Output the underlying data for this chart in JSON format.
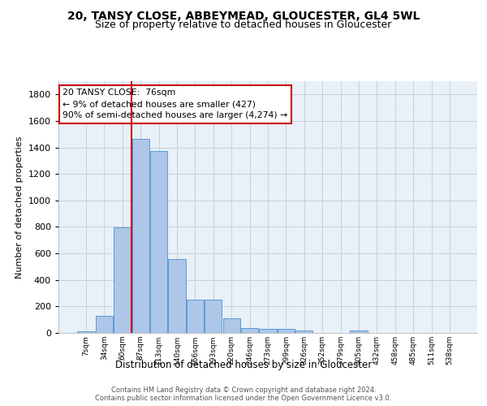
{
  "title1": "20, TANSY CLOSE, ABBEYMEAD, GLOUCESTER, GL4 5WL",
  "title2": "Size of property relative to detached houses in Gloucester",
  "xlabel": "Distribution of detached houses by size in Gloucester",
  "ylabel": "Number of detached properties",
  "footer1": "Contains HM Land Registry data © Crown copyright and database right 2024.",
  "footer2": "Contains public sector information licensed under the Open Government Licence v3.0.",
  "categories": [
    "7sqm",
    "34sqm",
    "60sqm",
    "87sqm",
    "113sqm",
    "140sqm",
    "166sqm",
    "193sqm",
    "220sqm",
    "246sqm",
    "273sqm",
    "299sqm",
    "326sqm",
    "352sqm",
    "379sqm",
    "405sqm",
    "432sqm",
    "458sqm",
    "485sqm",
    "511sqm",
    "538sqm"
  ],
  "values": [
    15,
    130,
    795,
    1465,
    1370,
    560,
    250,
    250,
    110,
    35,
    30,
    30,
    20,
    0,
    0,
    20,
    0,
    0,
    0,
    0,
    0
  ],
  "bar_color": "#aec6e8",
  "bar_edge_color": "#5b9bd5",
  "property_label": "20 TANSY CLOSE:  76sqm",
  "annotation_line1": "← 9% of detached houses are smaller (427)",
  "annotation_line2": "90% of semi-detached houses are larger (4,274) →",
  "vline_x_index": 2.5,
  "ylim": [
    0,
    1900
  ],
  "yticks": [
    0,
    200,
    400,
    600,
    800,
    1000,
    1200,
    1400,
    1600,
    1800
  ],
  "bg_color": "#e8f0f8",
  "grid_color": "#c8d0dc",
  "annotation_box_color": "#cc0000",
  "title1_fontsize": 10,
  "title2_fontsize": 9
}
